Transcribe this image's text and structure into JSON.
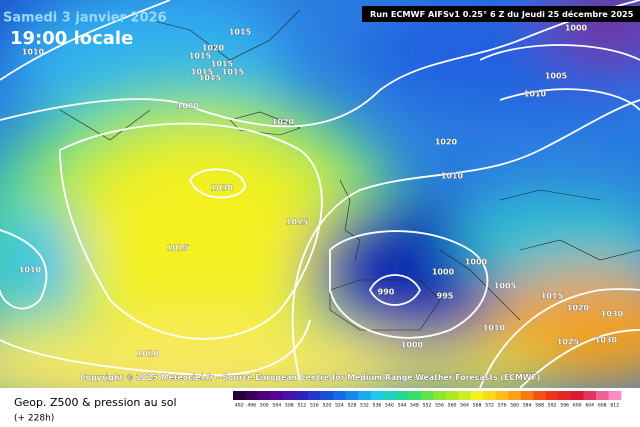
{
  "header": {
    "title": "Samedi 3 janvier 2026",
    "subtitle": "19:00 locale",
    "run": "Run ECMWF AIFSv1 0.25° 6 Z du Jeudi 25 décembre 2025"
  },
  "isobar_labels": [
    "1010",
    "1020",
    "1015",
    "1015",
    "1015",
    "1015",
    "1015",
    "1015",
    "1020",
    "1020",
    "1030",
    "1025",
    "1015",
    "1010",
    "1010",
    "1000",
    "1005",
    "1010",
    "1020",
    "1010",
    "1000",
    "1000",
    "990",
    "995",
    "1005",
    "1015",
    "1020",
    "1010",
    "1000",
    "1030",
    "1025",
    "1030"
  ],
  "copyright": "Copyright © 2025 Meteociel.fr - Source European Centre for Medium Range Weather Forecasts (ECMWF)",
  "footer": {
    "title": "Geop. Z500 & pression au sol",
    "lead": "(+ 228h)"
  },
  "scale": [
    "492",
    "496",
    "500",
    "504",
    "508",
    "512",
    "516",
    "520",
    "524",
    "528",
    "532",
    "536",
    "540",
    "544",
    "548",
    "552",
    "556",
    "560",
    "564",
    "568",
    "572",
    "576",
    "580",
    "584",
    "588",
    "592",
    "596",
    "600",
    "604",
    "608",
    "612"
  ]
}
